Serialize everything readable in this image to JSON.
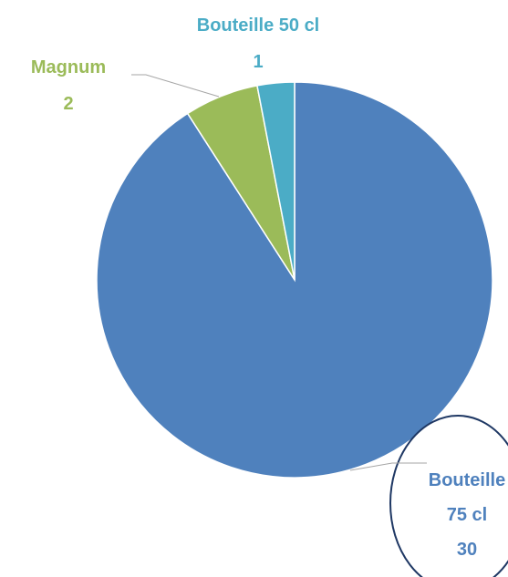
{
  "chart_data": {
    "type": "pie",
    "categories": [
      "Bouteille 75 cl",
      "Magnum",
      "Bouteille 50 cl"
    ],
    "values": [
      30,
      2,
      1
    ],
    "colors": [
      "#4f81bd",
      "#9bbb59",
      "#4bacc6"
    ]
  }
}
